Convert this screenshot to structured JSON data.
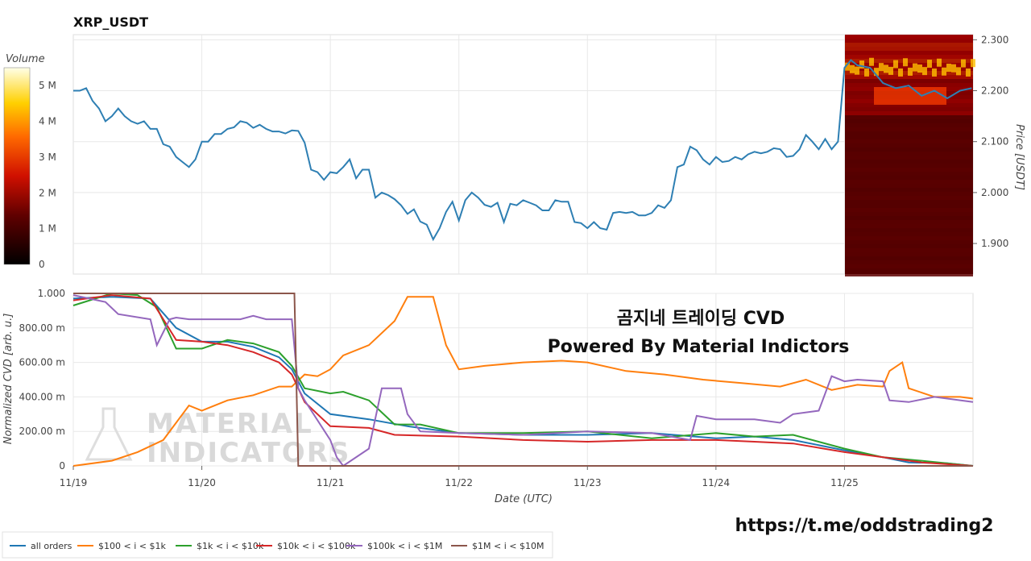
{
  "chart_data": [
    {
      "type": "line",
      "title": "XRP_USDT",
      "ylabel": "Price [USDT]",
      "ylim": [
        1.84,
        2.31
      ],
      "y_ticks": [
        "2.300",
        "2.200",
        "2.100",
        "2.000",
        "1.900"
      ],
      "y_tick_values": [
        2.3,
        2.2,
        2.1,
        2.0,
        1.9
      ],
      "x_range": [
        0,
        7.0
      ],
      "grid": true,
      "series": [
        {
          "color": "#2e7fb3",
          "x": [
            0,
            0.05,
            0.1,
            0.15,
            0.2,
            0.25,
            0.3,
            0.35,
            0.4,
            0.45,
            0.5,
            0.55,
            0.6,
            0.65,
            0.7,
            0.75,
            0.8,
            0.85,
            0.9,
            0.95,
            1.0,
            1.05,
            1.1,
            1.15,
            1.2,
            1.25,
            1.3,
            1.35,
            1.4,
            1.45,
            1.5,
            1.55,
            1.6,
            1.65,
            1.7,
            1.75,
            1.8,
            1.85,
            1.9,
            1.95,
            2.0,
            2.05,
            2.1,
            2.15,
            2.2,
            2.25,
            2.3,
            2.35,
            2.4,
            2.45,
            2.5,
            2.55,
            2.6,
            2.65,
            2.7,
            2.75,
            2.8,
            2.85,
            2.9,
            2.95,
            3.0,
            3.05,
            3.1,
            3.15,
            3.2,
            3.25,
            3.3,
            3.35,
            3.4,
            3.45,
            3.5,
            3.55,
            3.6,
            3.65,
            3.7,
            3.75,
            3.8,
            3.85,
            3.9,
            3.95,
            4.0,
            4.05,
            4.1,
            4.15,
            4.2,
            4.25,
            4.3,
            4.35,
            4.4,
            4.45,
            4.5,
            4.55,
            4.6,
            4.65,
            4.7,
            4.75,
            4.8,
            4.85,
            4.9,
            4.95,
            5.0,
            5.05,
            5.1,
            5.15,
            5.2,
            5.25,
            5.3,
            5.35,
            5.4,
            5.45,
            5.5,
            5.55,
            5.6,
            5.65,
            5.7,
            5.75,
            5.8,
            5.85,
            5.9,
            5.95,
            6.0
          ],
          "y": [
            2.2,
            2.2,
            2.205,
            2.18,
            2.165,
            2.14,
            2.15,
            2.165,
            2.15,
            2.14,
            2.135,
            2.14,
            2.125,
            2.125,
            2.095,
            2.09,
            2.07,
            2.06,
            2.05,
            2.065,
            2.1,
            2.1,
            2.115,
            2.115,
            2.125,
            2.128,
            2.14,
            2.137,
            2.127,
            2.133,
            2.125,
            2.12,
            2.12,
            2.116,
            2.122,
            2.121,
            2.098,
            2.045,
            2.04,
            2.025,
            2.04,
            2.038,
            2.05,
            2.065,
            2.028,
            2.045,
            2.045,
            1.99,
            2.0,
            1.995,
            1.987,
            1.975,
            1.958,
            1.967,
            1.943,
            1.937,
            1.908,
            1.93,
            1.962,
            1.982,
            1.945,
            1.985,
            2.0,
            1.99,
            1.976,
            1.972,
            1.98,
            1.942,
            1.978,
            1.975,
            1.985,
            1.98,
            1.975,
            1.965,
            1.965,
            1.985,
            1.982,
            1.982,
            1.942,
            1.94,
            1.93,
            1.942,
            1.93,
            1.927,
            1.96,
            1.962,
            1.96,
            1.962,
            1.955,
            1.955,
            1.96,
            1.975,
            1.97,
            1.985,
            2.05,
            2.055,
            2.09,
            2.083,
            2.065,
            2.055,
            2.07,
            2.06,
            2.062,
            2.07,
            2.065,
            2.075,
            2.08,
            2.077,
            2.08,
            2.087,
            2.085,
            2.07,
            2.072,
            2.085,
            2.113,
            2.1,
            2.085,
            2.105,
            2.085,
            2.1,
            2.245
          ]
        }
      ],
      "heatmap": {
        "colorbar_label": "Volume",
        "colorbar_ticks": [
          "5 M",
          "4 M",
          "3 M",
          "2 M",
          "1 M",
          "0"
        ],
        "colorbar_values": [
          5,
          4,
          3,
          2,
          1,
          0
        ]
      }
    },
    {
      "type": "line",
      "xlabel": "Date (UTC)",
      "ylabel": "Normalized CVD [arb. u.]",
      "ylim": [
        0,
        1.0
      ],
      "y_ticks": [
        "1.000",
        "800.00 m",
        "600.00 m",
        "400.00 m",
        "200.00 m",
        "0"
      ],
      "y_tick_values": [
        1.0,
        0.8,
        0.6,
        0.4,
        0.2,
        0
      ],
      "x_ticks": [
        "11/19",
        "11/20",
        "11/21",
        "11/22",
        "11/23",
        "11/24",
        "11/25"
      ],
      "x_tick_values": [
        0,
        1,
        2,
        3,
        4,
        5,
        6
      ],
      "x_range": [
        0,
        7.0
      ],
      "legend_position": "bottom-left",
      "series": [
        {
          "name": "all orders",
          "color": "#1f77b4",
          "x": [
            0,
            0.3,
            0.6,
            0.8,
            1.0,
            1.2,
            1.4,
            1.6,
            1.7,
            1.8,
            2.0,
            2.3,
            2.6,
            3.0,
            3.5,
            4.0,
            4.5,
            5.0,
            5.3,
            5.6,
            6.0,
            6.3,
            6.5,
            6.8,
            7.0
          ],
          "y": [
            0.97,
            0.98,
            0.97,
            0.8,
            0.72,
            0.72,
            0.69,
            0.63,
            0.56,
            0.42,
            0.3,
            0.27,
            0.23,
            0.19,
            0.18,
            0.18,
            0.19,
            0.16,
            0.17,
            0.15,
            0.09,
            0.05,
            0.02,
            0.015,
            0.0
          ]
        },
        {
          "name": "$100 < i < $1k",
          "color": "#ff7f0e",
          "x": [
            0,
            0.3,
            0.5,
            0.7,
            0.9,
            1.0,
            1.2,
            1.4,
            1.6,
            1.7,
            1.8,
            1.9,
            2.0,
            2.1,
            2.3,
            2.5,
            2.6,
            2.8,
            2.9,
            3.0,
            3.2,
            3.5,
            3.8,
            4.0,
            4.3,
            4.6,
            4.9,
            5.2,
            5.5,
            5.7,
            5.9,
            6.1,
            6.3,
            6.35,
            6.45,
            6.5,
            6.7,
            6.9,
            7.0
          ],
          "y": [
            0.0,
            0.03,
            0.08,
            0.15,
            0.35,
            0.32,
            0.38,
            0.41,
            0.46,
            0.46,
            0.53,
            0.52,
            0.56,
            0.64,
            0.7,
            0.84,
            0.98,
            0.98,
            0.7,
            0.56,
            0.58,
            0.6,
            0.61,
            0.6,
            0.55,
            0.53,
            0.5,
            0.48,
            0.46,
            0.5,
            0.44,
            0.47,
            0.46,
            0.55,
            0.6,
            0.45,
            0.4,
            0.4,
            0.39
          ]
        },
        {
          "name": "$1k < i < $10k",
          "color": "#2ca02c",
          "x": [
            0,
            0.3,
            0.5,
            0.65,
            0.8,
            1.0,
            1.2,
            1.4,
            1.6,
            1.7,
            1.8,
            2.0,
            2.1,
            2.3,
            2.5,
            2.7,
            3.0,
            3.5,
            4.0,
            4.5,
            5.0,
            5.3,
            5.6,
            6.0,
            6.3,
            6.6,
            7.0
          ],
          "y": [
            0.93,
            1.0,
            0.99,
            0.92,
            0.68,
            0.68,
            0.73,
            0.71,
            0.66,
            0.58,
            0.45,
            0.42,
            0.43,
            0.38,
            0.24,
            0.24,
            0.19,
            0.19,
            0.2,
            0.16,
            0.19,
            0.17,
            0.18,
            0.1,
            0.05,
            0.03,
            0.0
          ]
        },
        {
          "name": "$10k < i < $100k",
          "color": "#d62728",
          "x": [
            0,
            0.3,
            0.6,
            0.8,
            1.0,
            1.2,
            1.4,
            1.6,
            1.7,
            1.8,
            2.0,
            2.3,
            2.5,
            3.0,
            3.5,
            4.0,
            4.5,
            5.0,
            5.3,
            5.6,
            6.0,
            6.3,
            6.6,
            7.0
          ],
          "y": [
            0.96,
            0.99,
            0.97,
            0.73,
            0.72,
            0.7,
            0.66,
            0.6,
            0.53,
            0.37,
            0.23,
            0.22,
            0.18,
            0.17,
            0.15,
            0.14,
            0.15,
            0.15,
            0.14,
            0.13,
            0.08,
            0.05,
            0.02,
            0.0
          ]
        },
        {
          "name": "$100k < i < $1M",
          "color": "#9467bd",
          "x": [
            0,
            0.25,
            0.35,
            0.6,
            0.65,
            0.75,
            0.8,
            0.9,
            1.0,
            1.3,
            1.4,
            1.5,
            1.6,
            1.7,
            1.75,
            1.8,
            2.0,
            2.05,
            2.1,
            2.3,
            2.4,
            2.55,
            2.6,
            2.7,
            3.0,
            3.5,
            4.0,
            4.5,
            4.8,
            4.85,
            5.0,
            5.3,
            5.5,
            5.6,
            5.8,
            5.9,
            6.0,
            6.1,
            6.3,
            6.35,
            6.5,
            6.7,
            7.0
          ],
          "y": [
            0.99,
            0.95,
            0.88,
            0.85,
            0.7,
            0.85,
            0.86,
            0.85,
            0.85,
            0.85,
            0.87,
            0.85,
            0.85,
            0.85,
            0.45,
            0.38,
            0.15,
            0.05,
            0.0,
            0.1,
            0.45,
            0.45,
            0.3,
            0.2,
            0.19,
            0.18,
            0.2,
            0.19,
            0.15,
            0.29,
            0.27,
            0.27,
            0.25,
            0.3,
            0.32,
            0.52,
            0.49,
            0.5,
            0.49,
            0.38,
            0.37,
            0.4,
            0.37
          ]
        },
        {
          "name": "$1M < i < $10M",
          "color": "#8c564b",
          "x": [
            0,
            1.72,
            1.75,
            7.0
          ],
          "y": [
            1.0,
            1.0,
            0.0,
            0.0
          ]
        }
      ]
    }
  ],
  "overlay": {
    "line1": "곰지네 트레이딩 CVD",
    "line2": "Powered By Material Indictors",
    "url": "https://t.me/oddstrading2",
    "watermark_top": "MATERIAL",
    "watermark_bottom": "INDICATORS"
  }
}
